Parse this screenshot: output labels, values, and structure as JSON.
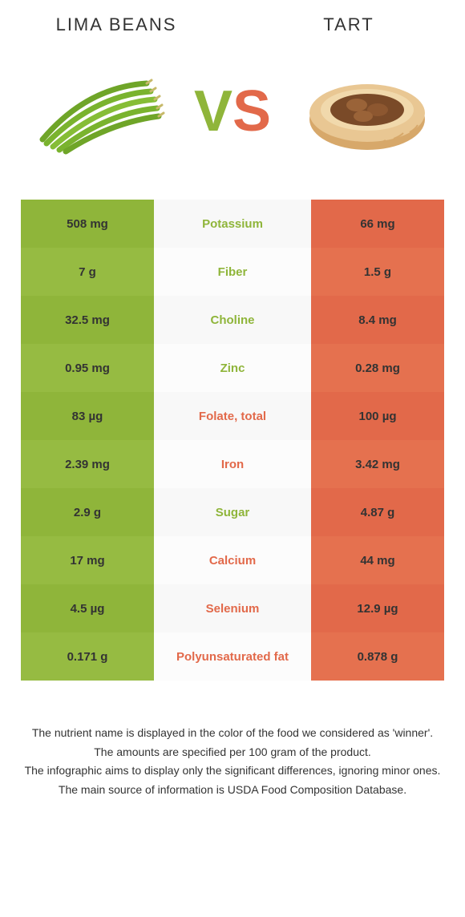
{
  "header": {
    "left_title": "Lima beans",
    "right_title": "Tart"
  },
  "vs": {
    "v": "V",
    "s": "S"
  },
  "colors": {
    "green": "#8fb53a",
    "green_alt": "#96bb42",
    "orange": "#e2694a",
    "orange_alt": "#e5714f",
    "row_bg_a": "#f8f8f8",
    "row_bg_b": "#fcfcfc",
    "text": "#333333",
    "white": "#ffffff"
  },
  "table": {
    "type": "comparison-table",
    "left_color": "#8fb53a",
    "right_color": "#e2694a",
    "rows": [
      {
        "left": "508 mg",
        "nutrient": "Potassium",
        "right": "66 mg",
        "winner": "left"
      },
      {
        "left": "7 g",
        "nutrient": "Fiber",
        "right": "1.5 g",
        "winner": "left"
      },
      {
        "left": "32.5 mg",
        "nutrient": "Choline",
        "right": "8.4 mg",
        "winner": "left"
      },
      {
        "left": "0.95 mg",
        "nutrient": "Zinc",
        "right": "0.28 mg",
        "winner": "left"
      },
      {
        "left": "83 µg",
        "nutrient": "Folate, total",
        "right": "100 µg",
        "winner": "right"
      },
      {
        "left": "2.39 mg",
        "nutrient": "Iron",
        "right": "3.42 mg",
        "winner": "right"
      },
      {
        "left": "2.9 g",
        "nutrient": "Sugar",
        "right": "4.87 g",
        "winner": "left"
      },
      {
        "left": "17 mg",
        "nutrient": "Calcium",
        "right": "44 mg",
        "winner": "right"
      },
      {
        "left": "4.5 µg",
        "nutrient": "Selenium",
        "right": "12.9 µg",
        "winner": "right"
      },
      {
        "left": "0.171 g",
        "nutrient": "Polyunsaturated fat",
        "right": "0.878 g",
        "winner": "right"
      }
    ]
  },
  "footer": {
    "line1": "The nutrient name is displayed in the color of the food we considered as 'winner'.",
    "line2": "The amounts are specified per 100 gram of the product.",
    "line3": "The infographic aims to display only the significant differences, ignoring minor ones.",
    "line4": "The main source of information is USDA Food Composition Database."
  }
}
